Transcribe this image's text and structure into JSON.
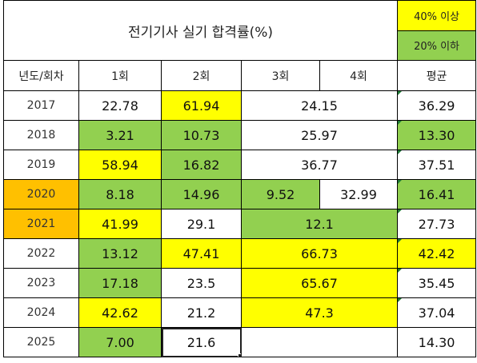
{
  "title": "전기기사 실기 합격률(%)",
  "legend": {
    "high": "40% 이상",
    "low": "20% 이하"
  },
  "colors": {
    "high": "#ffff00",
    "low": "#92d050",
    "highlight_year": "#ffc000"
  },
  "headers": {
    "year": "년도/회차",
    "r1": "1회",
    "r2": "2회",
    "r3": "3회",
    "r4": "4회",
    "avg": "평균"
  },
  "rows": [
    {
      "year": "2017",
      "r1": "22.78",
      "r2": "61.94",
      "r34": "24.15",
      "avg": "36.29"
    },
    {
      "year": "2018",
      "r1": "3.21",
      "r2": "10.73",
      "r34": "25.97",
      "avg": "13.30"
    },
    {
      "year": "2019",
      "r1": "58.94",
      "r2": "16.82",
      "r34": "36.77",
      "avg": "37.51"
    },
    {
      "year": "2020",
      "r1": "8.18",
      "r2": "14.96",
      "r3": "9.52",
      "r4": "32.99",
      "avg": "16.41"
    },
    {
      "year": "2021",
      "r1": "41.99",
      "r2": "29.1",
      "r34": "12.1",
      "avg": "27.73"
    },
    {
      "year": "2022",
      "r1": "13.12",
      "r2": "47.41",
      "r34": "66.73",
      "avg": "42.42"
    },
    {
      "year": "2023",
      "r1": "17.18",
      "r2": "23.5",
      "r34": "65.67",
      "avg": "35.45"
    },
    {
      "year": "2024",
      "r1": "42.62",
      "r2": "21.2",
      "r34": "47.3",
      "avg": "37.04"
    },
    {
      "year": "2025",
      "r1": "7.00",
      "r2": "21.6",
      "r34": "",
      "avg": "14.30"
    }
  ]
}
